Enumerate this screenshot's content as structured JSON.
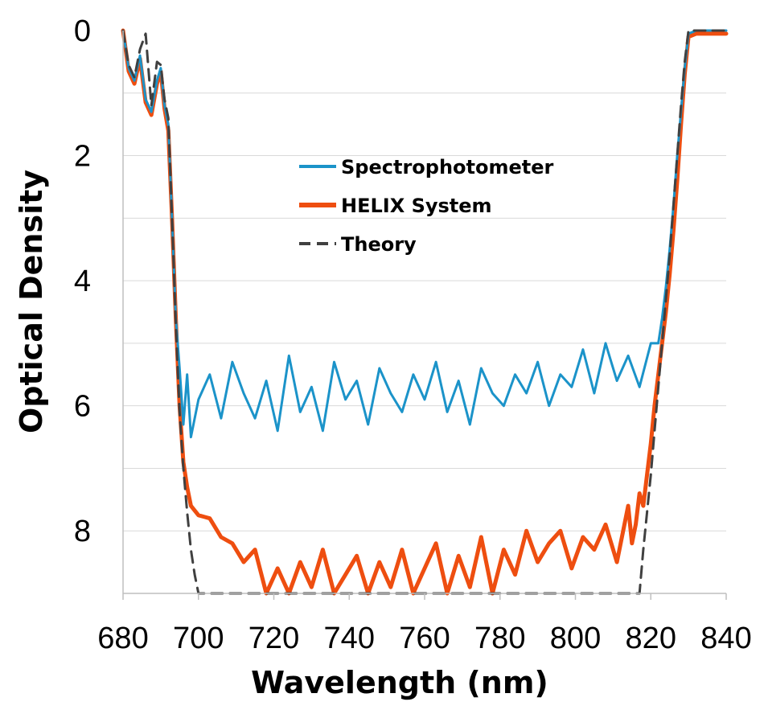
{
  "chart_data": {
    "type": "line",
    "title": "",
    "xlabel": "Wavelength (nm)",
    "ylabel": "Optical Density",
    "xlim": [
      680,
      840
    ],
    "ylim": [
      0,
      9
    ],
    "y_inverted": true,
    "x_ticks": [
      680,
      700,
      720,
      740,
      760,
      780,
      800,
      820,
      840
    ],
    "x_tick_labels": [
      "680",
      "700",
      "720",
      "740",
      "760",
      "780",
      "800",
      "820",
      "840"
    ],
    "y_ticks": [
      0,
      2,
      4,
      6,
      8
    ],
    "y_tick_labels": [
      "0",
      "2",
      "4",
      "6",
      "8"
    ],
    "y_gridlines": [
      1,
      2,
      3,
      4,
      5,
      6,
      7,
      8,
      9
    ],
    "legend_position": "upper-center",
    "series": [
      {
        "name": "Spectrophotometer",
        "color": "#1b93c9",
        "style": "solid",
        "x": [
          680,
          681.5,
          683,
          684.5,
          686,
          687.5,
          689,
          690,
          691,
          692,
          693,
          694,
          695,
          696,
          697,
          698,
          700,
          703,
          706,
          709,
          712,
          715,
          718,
          721,
          724,
          727,
          730,
          733,
          736,
          739,
          742,
          745,
          748,
          751,
          754,
          757,
          760,
          763,
          766,
          769,
          772,
          775,
          778,
          781,
          784,
          787,
          790,
          793,
          796,
          799,
          802,
          805,
          808,
          811,
          814,
          817,
          820,
          822,
          823,
          824,
          825,
          826,
          827,
          828,
          829,
          830,
          832,
          835,
          838,
          840
        ],
        "y": [
          0.0,
          0.6,
          0.8,
          0.4,
          1.1,
          1.3,
          0.8,
          0.6,
          1.2,
          1.5,
          3.0,
          4.6,
          5.4,
          6.3,
          5.5,
          6.5,
          5.9,
          5.5,
          6.2,
          5.3,
          5.8,
          6.2,
          5.6,
          6.4,
          5.2,
          6.1,
          5.7,
          6.4,
          5.3,
          5.9,
          5.6,
          6.3,
          5.4,
          5.8,
          6.1,
          5.5,
          5.9,
          5.3,
          6.1,
          5.6,
          6.3,
          5.4,
          5.8,
          6.0,
          5.5,
          5.8,
          5.3,
          6.0,
          5.5,
          5.7,
          5.1,
          5.8,
          5.0,
          5.6,
          5.2,
          5.7,
          5.0,
          5.0,
          4.6,
          4.1,
          3.5,
          2.8,
          2.0,
          1.3,
          0.6,
          0.05,
          0.0,
          0.0,
          0.0,
          0.0
        ]
      },
      {
        "name": "HELIX System",
        "color": "#ee4e10",
        "style": "solid",
        "x": [
          680,
          681.5,
          683,
          684.5,
          686,
          687.5,
          689,
          690,
          691,
          692,
          693,
          694,
          695,
          696,
          697,
          698,
          700,
          703,
          706,
          709,
          712,
          715,
          718,
          721,
          724,
          727,
          730,
          733,
          736,
          739,
          742,
          745,
          748,
          751,
          754,
          757,
          760,
          763,
          766,
          769,
          772,
          775,
          778,
          781,
          784,
          787,
          790,
          793,
          796,
          799,
          802,
          805,
          808,
          811,
          814,
          815,
          816,
          817,
          818,
          819,
          820,
          821,
          822,
          823,
          824,
          825,
          826,
          827,
          828,
          829,
          830,
          832,
          835,
          838,
          840
        ],
        "y": [
          0.0,
          0.65,
          0.85,
          0.45,
          1.15,
          1.35,
          0.85,
          0.65,
          1.25,
          1.6,
          3.0,
          4.6,
          6.0,
          6.9,
          7.3,
          7.6,
          7.75,
          7.8,
          8.1,
          8.2,
          8.5,
          8.3,
          9.0,
          8.6,
          9.0,
          8.5,
          8.9,
          8.3,
          9.0,
          8.7,
          8.4,
          9.0,
          8.5,
          8.9,
          8.3,
          9.0,
          8.6,
          8.2,
          9.0,
          8.4,
          8.9,
          8.1,
          9.0,
          8.3,
          8.7,
          8.0,
          8.5,
          8.2,
          8.0,
          8.6,
          8.1,
          8.3,
          7.9,
          8.5,
          7.6,
          8.2,
          7.9,
          7.4,
          7.6,
          7.1,
          6.6,
          6.0,
          5.5,
          5.0,
          4.5,
          3.9,
          3.2,
          2.4,
          1.5,
          0.7,
          0.1,
          0.05,
          0.05,
          0.05,
          0.05
        ]
      },
      {
        "name": "Theory",
        "color": "#404040",
        "style": "dashed",
        "x": [
          680,
          681.5,
          683,
          684.5,
          686,
          687.5,
          689,
          690,
          691,
          692,
          693,
          694,
          695,
          696,
          697,
          698,
          699,
          700,
          817,
          818,
          819,
          820,
          821,
          822,
          823,
          824,
          825,
          826,
          827,
          828,
          829,
          830,
          832,
          835,
          838,
          840
        ],
        "y": [
          0.0,
          0.55,
          0.75,
          0.3,
          0.05,
          1.2,
          0.5,
          0.55,
          1.1,
          1.4,
          3.0,
          4.7,
          6.1,
          7.0,
          7.7,
          8.3,
          8.7,
          9.0,
          9.0,
          8.3,
          7.7,
          7.1,
          6.4,
          5.7,
          5.0,
          4.3,
          3.6,
          2.8,
          2.0,
          1.2,
          0.5,
          0.0,
          0.0,
          0.0,
          0.0,
          0.0
        ]
      }
    ]
  }
}
